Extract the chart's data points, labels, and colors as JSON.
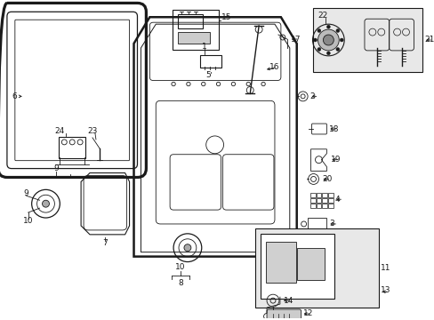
{
  "bg_color": "#ffffff",
  "line_color": "#1a1a1a",
  "box_bg": "#e8e8e8",
  "fig_width": 4.89,
  "fig_height": 3.6,
  "dpi": 100,
  "lw_thick": 1.8,
  "lw_mid": 1.0,
  "lw_thin": 0.6,
  "fs_label": 6.5
}
